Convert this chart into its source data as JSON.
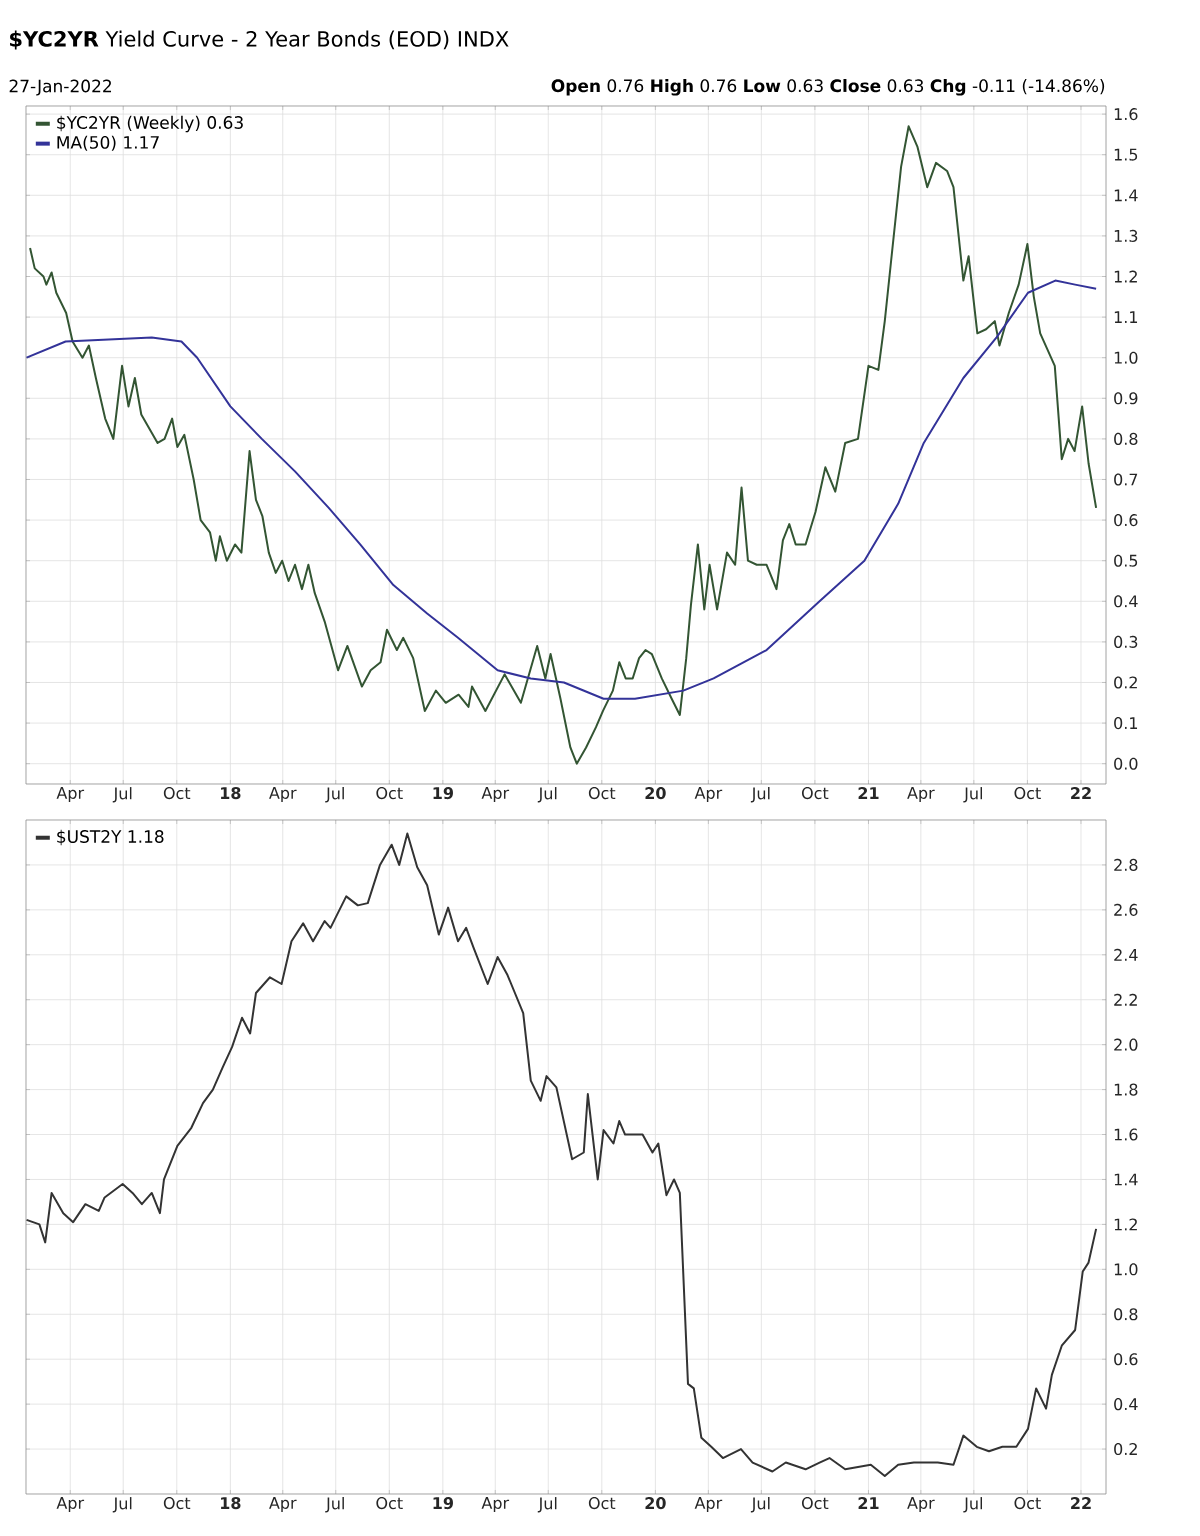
{
  "chart_data": [
    {
      "type": "line",
      "title": "**$YC2YR** Yield Curve - 2 Year Bonds (EOD) INDX",
      "subtitle": "27-Jan-2022",
      "annotations": [
        "**Open** 0.76 **High** 0.76 **Low** 0.63 **Close** 0.63 **Chg** -0.11 (-14.86%)"
      ],
      "xlim": [
        "2017-01-15",
        "2022-02-13"
      ],
      "xticks": [
        {
          "value": "2017-04-01",
          "label": "Apr"
        },
        {
          "value": "2017-07-01",
          "label": "Jul"
        },
        {
          "value": "2017-10-01",
          "label": "Oct"
        },
        {
          "value": "2018-01-01",
          "label": "18"
        },
        {
          "value": "2018-04-01",
          "label": "Apr"
        },
        {
          "value": "2018-07-01",
          "label": "Jul"
        },
        {
          "value": "2018-10-01",
          "label": "Oct"
        },
        {
          "value": "2019-01-01",
          "label": "19"
        },
        {
          "value": "2019-04-01",
          "label": "Apr"
        },
        {
          "value": "2019-07-01",
          "label": "Jul"
        },
        {
          "value": "2019-10-01",
          "label": "Oct"
        },
        {
          "value": "2020-01-01",
          "label": "20"
        },
        {
          "value": "2020-04-01",
          "label": "Apr"
        },
        {
          "value": "2020-07-01",
          "label": "Jul"
        },
        {
          "value": "2020-10-01",
          "label": "Oct"
        },
        {
          "value": "2021-01-01",
          "label": "21"
        },
        {
          "value": "2021-04-01",
          "label": "Apr"
        },
        {
          "value": "2021-07-01",
          "label": "Jul"
        },
        {
          "value": "2021-10-01",
          "label": "Oct"
        },
        {
          "value": "2022-01-01",
          "label": "22"
        }
      ],
      "ylim": [
        -0.05,
        1.62
      ],
      "yticks": [
        {
          "value": 0,
          "label": "0.0"
        },
        0.1,
        0.2,
        0.3,
        0.4,
        0.5,
        0.6,
        0.7,
        0.8,
        0.9,
        {
          "value": 1,
          "label": "1.0"
        },
        1.1,
        1.2,
        1.3,
        1.4,
        1.5,
        1.6
      ],
      "grid": true,
      "legend": "top left",
      "series": [
        {
          "name": "$YC2YR (Weekly) 0.63",
          "color": "#335533",
          "x": [
            "2017-01-22",
            "2017-01-30",
            "2017-02-14",
            "2017-02-19",
            "2017-02-28",
            "2017-03-08",
            "2017-03-25",
            "2017-04-05",
            "2017-04-22",
            "2017-05-03",
            "2017-05-15",
            "2017-05-31",
            "2017-06-14",
            "2017-06-29",
            "2017-07-10",
            "2017-07-21",
            "2017-08-01",
            "2017-08-29",
            "2017-09-10",
            "2017-09-23",
            "2017-10-02",
            "2017-10-14",
            "2017-10-30",
            "2017-11-11",
            "2017-11-27",
            "2017-12-07",
            "2017-12-14",
            "2017-12-26",
            "2018-01-09",
            "2018-01-20",
            "2018-02-03",
            "2018-02-14",
            "2018-02-25",
            "2018-03-08",
            "2018-03-20",
            "2018-03-31",
            "2018-04-11",
            "2018-04-22",
            "2018-05-04",
            "2018-05-15",
            "2018-05-26",
            "2018-06-12",
            "2018-07-05",
            "2018-07-21",
            "2018-08-15",
            "2018-08-30",
            "2018-09-16",
            "2018-09-27",
            "2018-10-14",
            "2018-10-25",
            "2018-11-11",
            "2018-12-01",
            "2018-12-20",
            "2019-01-06",
            "2019-01-28",
            "2019-02-14",
            "2019-02-20",
            "2019-03-15",
            "2019-04-17",
            "2019-05-15",
            "2019-06-12",
            "2019-06-26",
            "2019-07-05",
            "2019-07-22",
            "2019-08-08",
            "2019-08-19",
            "2019-09-04",
            "2019-09-21",
            "2019-10-03",
            "2019-10-20",
            "2019-10-31",
            "2019-11-11",
            "2019-11-23",
            "2019-12-04",
            "2019-12-15",
            "2019-12-26",
            "2020-01-12",
            "2020-01-29",
            "2020-02-12",
            "2020-02-23",
            "2020-03-02",
            "2020-03-14",
            "2020-03-25",
            "2020-04-03",
            "2020-04-16",
            "2020-05-03",
            "2020-05-17",
            "2020-05-28",
            "2020-06-08",
            "2020-06-23",
            "2020-07-10",
            "2020-07-27",
            "2020-08-07",
            "2020-08-18",
            "2020-08-29",
            "2020-09-15",
            "2020-10-02",
            "2020-10-19",
            "2020-11-05",
            "2020-11-22",
            "2020-12-14",
            "2021-01-01",
            "2021-01-18",
            "2021-01-29",
            "2021-02-09",
            "2021-02-26",
            "2021-03-11",
            "2021-03-26",
            "2021-04-12",
            "2021-04-27",
            "2021-05-16",
            "2021-05-27",
            "2021-06-13",
            "2021-06-22",
            "2021-07-07",
            "2021-07-22",
            "2021-08-06",
            "2021-08-14",
            "2021-08-30",
            "2021-09-16",
            "2021-10-01",
            "2021-10-12",
            "2021-10-23",
            "2021-11-17",
            "2021-11-29",
            "2021-12-10",
            "2021-12-21",
            "2022-01-03",
            "2022-01-14",
            "2022-01-27"
          ],
          "values": [
            1.27,
            1.22,
            1.2,
            1.18,
            1.21,
            1.16,
            1.11,
            1.04,
            1.0,
            1.03,
            0.95,
            0.85,
            0.8,
            0.98,
            0.88,
            0.95,
            0.86,
            0.79,
            0.8,
            0.85,
            0.78,
            0.81,
            0.7,
            0.6,
            0.57,
            0.5,
            0.56,
            0.5,
            0.54,
            0.52,
            0.77,
            0.65,
            0.61,
            0.52,
            0.47,
            0.5,
            0.45,
            0.49,
            0.43,
            0.49,
            0.42,
            0.35,
            0.23,
            0.29,
            0.19,
            0.23,
            0.25,
            0.33,
            0.28,
            0.31,
            0.26,
            0.13,
            0.18,
            0.15,
            0.17,
            0.14,
            0.19,
            0.13,
            0.22,
            0.15,
            0.29,
            0.21,
            0.27,
            0.16,
            0.04,
            0.0,
            0.04,
            0.09,
            0.13,
            0.18,
            0.25,
            0.21,
            0.21,
            0.26,
            0.28,
            0.27,
            0.21,
            0.16,
            0.12,
            0.26,
            0.39,
            0.54,
            0.38,
            0.49,
            0.38,
            0.52,
            0.49,
            0.68,
            0.5,
            0.49,
            0.49,
            0.43,
            0.55,
            0.59,
            0.54,
            0.54,
            0.62,
            0.73,
            0.67,
            0.79,
            0.8,
            0.98,
            0.97,
            1.09,
            1.24,
            1.47,
            1.57,
            1.52,
            1.42,
            1.48,
            1.46,
            1.42,
            1.19,
            1.25,
            1.06,
            1.07,
            1.09,
            1.03,
            1.11,
            1.18,
            1.28,
            1.15,
            1.06,
            0.98,
            0.75,
            0.8,
            0.77,
            0.88,
            0.74,
            0.63
          ]
        },
        {
          "name": "MA(50) 1.17",
          "color": "#333399",
          "x": [
            "2017-01-16",
            "2017-03-24",
            "2017-08-19",
            "2017-10-09",
            "2017-11-05",
            "2018-01-01",
            "2018-02-24",
            "2018-04-22",
            "2018-06-19",
            "2018-08-12",
            "2018-10-08",
            "2018-12-05",
            "2019-01-27",
            "2019-04-05",
            "2019-06-01",
            "2019-07-28",
            "2019-10-04",
            "2019-11-27",
            "2020-02-18",
            "2020-04-10",
            "2020-07-10",
            "2020-10-09",
            "2020-12-25",
            "2021-02-21",
            "2021-04-06",
            "2021-06-13",
            "2021-08-09",
            "2021-10-02",
            "2021-11-18",
            "2021-12-22",
            "2022-01-27"
          ],
          "values": [
            1.0,
            1.04,
            1.05,
            1.04,
            1.0,
            0.88,
            0.8,
            0.72,
            0.63,
            0.54,
            0.44,
            0.37,
            0.31,
            0.23,
            0.21,
            0.2,
            0.16,
            0.16,
            0.18,
            0.21,
            0.28,
            0.4,
            0.5,
            0.64,
            0.79,
            0.95,
            1.05,
            1.16,
            1.19,
            1.18,
            1.17
          ]
        }
      ]
    },
    {
      "type": "line",
      "xlim": [
        "2017-01-15",
        "2022-02-13"
      ],
      "xticks": [
        {
          "value": "2017-04-01",
          "label": "Apr"
        },
        {
          "value": "2017-07-01",
          "label": "Jul"
        },
        {
          "value": "2017-10-01",
          "label": "Oct"
        },
        {
          "value": "2018-01-01",
          "label": "18"
        },
        {
          "value": "2018-04-01",
          "label": "Apr"
        },
        {
          "value": "2018-07-01",
          "label": "Jul"
        },
        {
          "value": "2018-10-01",
          "label": "Oct"
        },
        {
          "value": "2019-01-01",
          "label": "19"
        },
        {
          "value": "2019-04-01",
          "label": "Apr"
        },
        {
          "value": "2019-07-01",
          "label": "Jul"
        },
        {
          "value": "2019-10-01",
          "label": "Oct"
        },
        {
          "value": "2020-01-01",
          "label": "20"
        },
        {
          "value": "2020-04-01",
          "label": "Apr"
        },
        {
          "value": "2020-07-01",
          "label": "Jul"
        },
        {
          "value": "2020-10-01",
          "label": "Oct"
        },
        {
          "value": "2021-01-01",
          "label": "21"
        },
        {
          "value": "2021-04-01",
          "label": "Apr"
        },
        {
          "value": "2021-07-01",
          "label": "Jul"
        },
        {
          "value": "2021-10-01",
          "label": "Oct"
        },
        {
          "value": "2022-01-01",
          "label": "22"
        }
      ],
      "ylim": [
        0.0,
        3.0
      ],
      "yticks": [
        0.2,
        0.4,
        0.6,
        0.8,
        {
          "value": 1,
          "label": "1.0"
        },
        1.2,
        1.4,
        1.6,
        1.8,
        {
          "value": 2,
          "label": "2.0"
        },
        2.2,
        2.4,
        2.6,
        2.8
      ],
      "grid": true,
      "legend": "top left",
      "series": [
        {
          "name": "$UST2Y 1.18",
          "color": "#333333",
          "x": [
            "2017-01-16",
            "2017-02-07",
            "2017-02-17",
            "2017-02-28",
            "2017-03-20",
            "2017-04-06",
            "2017-04-27",
            "2017-05-20",
            "2017-05-30",
            "2017-06-30",
            "2017-07-17",
            "2017-08-02",
            "2017-08-19",
            "2017-09-02",
            "2017-09-09",
            "2017-10-02",
            "2017-10-26",
            "2017-11-15",
            "2017-12-02",
            "2017-12-19",
            "2018-01-04",
            "2018-01-21",
            "2018-02-04",
            "2018-02-14",
            "2018-03-10",
            "2018-03-30",
            "2018-04-16",
            "2018-05-06",
            "2018-05-23",
            "2018-06-12",
            "2018-06-22",
            "2018-07-19",
            "2018-08-08",
            "2018-08-25",
            "2018-09-15",
            "2018-10-05",
            "2018-10-18",
            "2018-11-01",
            "2018-11-18",
            "2018-12-05",
            "2018-12-25",
            "2019-01-10",
            "2019-01-27",
            "2019-02-10",
            "2019-02-23",
            "2019-03-19",
            "2019-04-05",
            "2019-04-22",
            "2019-05-19",
            "2019-06-01",
            "2019-06-18",
            "2019-06-28",
            "2019-07-15",
            "2019-08-11",
            "2019-08-31",
            "2019-09-07",
            "2019-09-24",
            "2019-10-04",
            "2019-10-21",
            "2019-10-31",
            "2019-11-10",
            "2019-12-10",
            "2019-12-27",
            "2020-01-06",
            "2020-01-20",
            "2020-02-02",
            "2020-02-12",
            "2020-02-26",
            "2020-03-07",
            "2020-03-20",
            "2020-04-06",
            "2020-04-26",
            "2020-05-27",
            "2020-06-16",
            "2020-07-20",
            "2020-08-12",
            "2020-09-15",
            "2020-10-09",
            "2020-10-26",
            "2020-11-22",
            "2021-01-05",
            "2021-01-29",
            "2021-02-21",
            "2021-03-20",
            "2021-04-30",
            "2021-05-27",
            "2021-06-13",
            "2021-07-06",
            "2021-07-27",
            "2021-08-19",
            "2021-09-12",
            "2021-10-02",
            "2021-10-16",
            "2021-11-02",
            "2021-11-12",
            "2021-11-29",
            "2021-12-22",
            "2022-01-04",
            "2022-01-14",
            "2022-01-27"
          ],
          "values": [
            1.22,
            1.2,
            1.12,
            1.34,
            1.25,
            1.21,
            1.29,
            1.26,
            1.32,
            1.38,
            1.34,
            1.29,
            1.34,
            1.25,
            1.4,
            1.55,
            1.63,
            1.74,
            1.8,
            1.9,
            1.99,
            2.12,
            2.05,
            2.23,
            2.3,
            2.27,
            2.46,
            2.54,
            2.46,
            2.55,
            2.52,
            2.66,
            2.62,
            2.63,
            2.8,
            2.89,
            2.8,
            2.94,
            2.79,
            2.71,
            2.49,
            2.61,
            2.46,
            2.52,
            2.43,
            2.27,
            2.39,
            2.31,
            2.14,
            1.84,
            1.75,
            1.86,
            1.81,
            1.49,
            1.52,
            1.78,
            1.4,
            1.62,
            1.56,
            1.66,
            1.6,
            1.6,
            1.52,
            1.56,
            1.33,
            1.4,
            1.34,
            0.49,
            0.47,
            0.25,
            0.21,
            0.16,
            0.2,
            0.14,
            0.1,
            0.14,
            0.11,
            0.14,
            0.16,
            0.11,
            0.13,
            0.08,
            0.13,
            0.14,
            0.14,
            0.13,
            0.26,
            0.21,
            0.19,
            0.21,
            0.21,
            0.29,
            0.47,
            0.38,
            0.53,
            0.66,
            0.73,
            0.99,
            1.03,
            1.18
          ]
        }
      ]
    }
  ]
}
